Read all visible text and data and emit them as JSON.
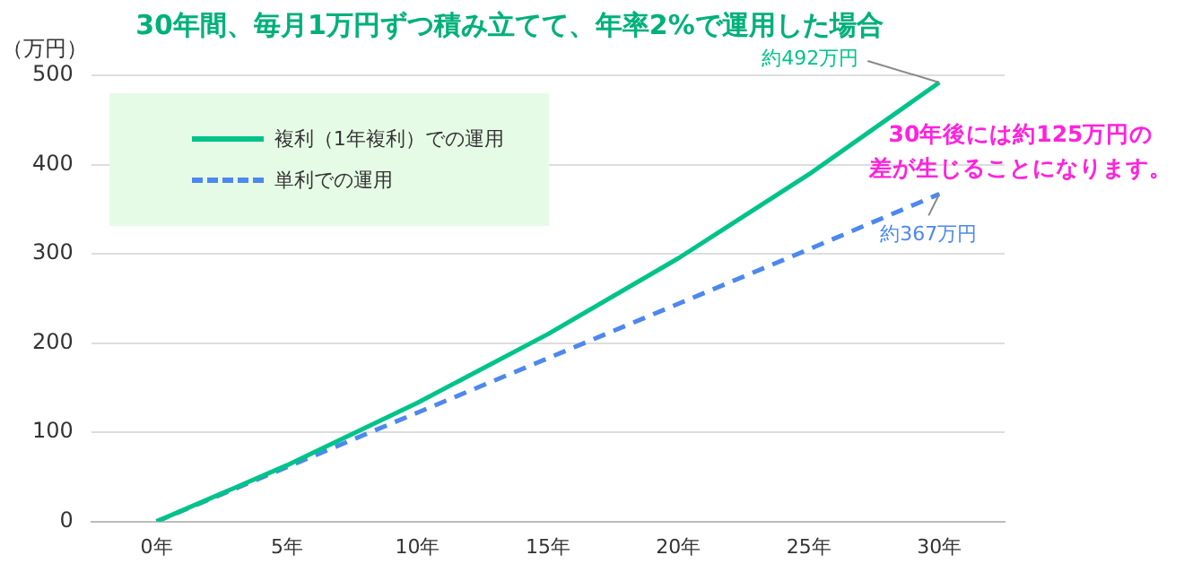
{
  "chart_data": {
    "type": "line",
    "title": "30年間、毎月1万円ずつ積み立てて、年率2%で運用した場合",
    "ylabel": "（万円）",
    "categories": [
      "0年",
      "5年",
      "10年",
      "15年",
      "20年",
      "25年",
      "30年"
    ],
    "series": [
      {
        "name": "複利（1年複利）での運用",
        "color": "#00c389",
        "values": [
          0,
          63,
          133,
          210,
          295,
          389,
          492
        ],
        "line_style": "solid"
      },
      {
        "name": "単利での運用",
        "color": "#4d88ee",
        "values": [
          0,
          61,
          122,
          183,
          244,
          305,
          367
        ],
        "line_style": "dashed"
      }
    ],
    "ylim": [
      0,
      500
    ],
    "yticks": [
      0,
      100,
      200,
      300,
      400,
      500
    ],
    "grid": "y",
    "legend": "top left",
    "marker": "none",
    "annotations": [
      {
        "text": "約492万円",
        "x": "30年",
        "y": 492
      },
      {
        "text": "約367万円",
        "x": "30年",
        "y": 367
      },
      "30年後には約125万円の",
      "差が生じることになります。"
    ]
  }
}
